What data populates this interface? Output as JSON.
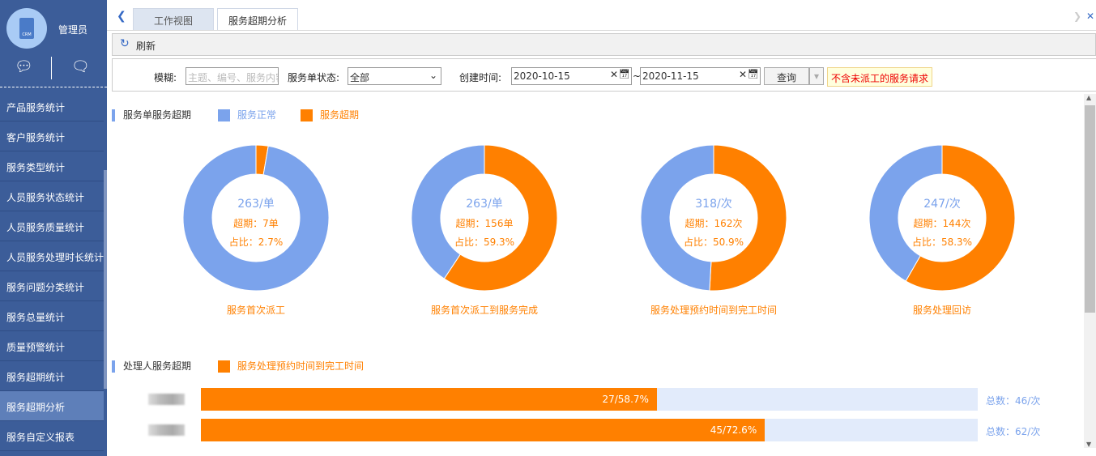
{
  "sidebar": {
    "user": "管理员",
    "items": [
      "产品服务统计",
      "客户服务统计",
      "服务类型统计",
      "人员服务状态统计",
      "人员服务质量统计",
      "人员服务处理时长统计",
      "服务问题分类统计",
      "服务总量统计",
      "质量预警统计",
      "服务超期统计",
      "服务超期分析",
      "服务自定义报表"
    ],
    "active": 10
  },
  "tabs": [
    "工作视图",
    "服务超期分析"
  ],
  "toolbar": {
    "refresh": "刷新"
  },
  "filter": {
    "fuzzy_label": "模糊:",
    "fuzzy_placeholder": "主题、编号、服务内容",
    "status_label": "服务单状态:",
    "status_value": "全部",
    "created_label": "创建时间:",
    "date_from": "2020-10-15",
    "date_sep": "~",
    "date_to": "2020-11-15",
    "query": "查询",
    "notice": "不含未派工的服务请求"
  },
  "section1": {
    "title": "服务单服务超期",
    "legend_normal": "服务正常",
    "legend_overdue": "服务超期"
  },
  "colors": {
    "normal": "#7ba3ec",
    "overdue": "#ff8000"
  },
  "donuts": [
    {
      "title": "服务首次派工",
      "total": "263/单",
      "overdue": "超期：7单",
      "ratio": "占比：2.7%",
      "pct": 2.7
    },
    {
      "title": "服务首次派工到服务完成",
      "total": "263/单",
      "overdue": "超期：156单",
      "ratio": "占比：59.3%",
      "pct": 59.3
    },
    {
      "title": "服务处理预约时间到完工时间",
      "total": "318/次",
      "overdue": "超期：162次",
      "ratio": "占比：50.9%",
      "pct": 50.9
    },
    {
      "title": "服务处理回访",
      "total": "247/次",
      "overdue": "超期：144次",
      "ratio": "占比：58.3%",
      "pct": 58.3
    }
  ],
  "section2": {
    "title": "处理人服务超期",
    "legend": "服务处理预约时间到完工时间",
    "rows": [
      {
        "label": "27/58.7%",
        "pct": 58.7,
        "total": "总数：46/次"
      },
      {
        "label": "45/72.6%",
        "pct": 72.6,
        "total": "总数：62/次"
      }
    ]
  }
}
